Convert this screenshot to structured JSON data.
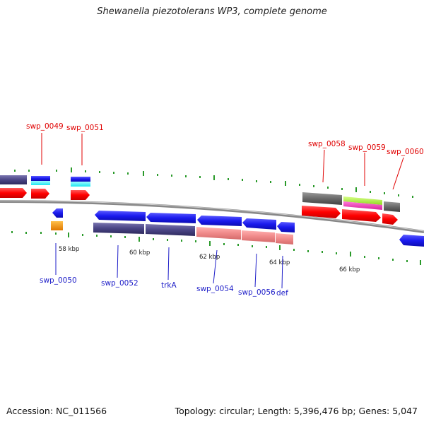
{
  "title": "Shewanella piezotolerans WP3, complete genome",
  "footer": {
    "accession": "Accession: NC_011566",
    "summary": "Topology: circular; Length: 5,396,476 bp; Genes: 5,047"
  },
  "scale_labels": [
    "58 kbp",
    "60 kbp",
    "62 kbp",
    "64 kbp",
    "66 kbp"
  ],
  "gene_labels_top": [
    "swp_0049",
    "swp_0051",
    "swp_0058",
    "swp_0059",
    "swp_0060"
  ],
  "gene_labels_bottom": [
    "swp_0050",
    "swp_0052",
    "trkA",
    "swp_0054",
    "swp_0056",
    "def"
  ],
  "colors": {
    "label_top": "#e00000",
    "label_bottom": "#1d1dc8",
    "forward_gene": "#ff0000",
    "reverse_gene": "#1a1aee",
    "backbone": "#888888",
    "tick": "#2a9a2a"
  }
}
